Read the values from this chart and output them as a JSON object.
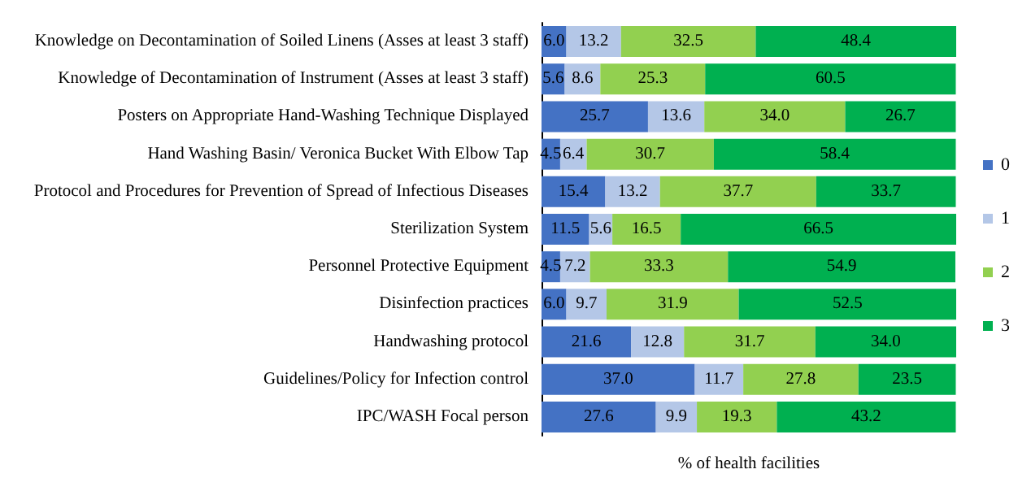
{
  "chart_data": {
    "type": "bar",
    "orientation": "horizontal",
    "stacked": true,
    "xlabel": "% of health facilities",
    "tick_labels": "y",
    "grid": false,
    "legend": "right",
    "categories": [
      "Knowledge on Decontamination of Soiled Linens (Asses at least 3 staff)",
      "Knowledge of Decontamination of Instrument (Asses at least 3 staff)",
      "Posters on Appropriate Hand-Washing Technique Displayed",
      "Hand Washing Basin/ Veronica Bucket With Elbow Tap",
      "Protocol and Procedures for Prevention of Spread of Infectious Diseases",
      "Sterilization System",
      "Personnel Protective Equipment",
      "Disinfection practices",
      "Handwashing protocol",
      "Guidelines/Policy for Infection control",
      "IPC/WASH Focal person"
    ],
    "series": [
      {
        "name": "0",
        "color": "#4472c4",
        "values": [
          6.0,
          5.6,
          25.7,
          4.5,
          15.4,
          11.5,
          4.5,
          6.0,
          21.6,
          37.0,
          27.6
        ],
        "value_labels": [
          "6.0",
          "5.6",
          "25.7",
          "4.5",
          "15.4",
          "11.5",
          "4.5",
          "6.0",
          "21.6",
          "37.0",
          "27.6"
        ]
      },
      {
        "name": "1",
        "color": "#b4c7e7",
        "values": [
          13.2,
          8.6,
          13.6,
          6.4,
          13.2,
          5.6,
          7.2,
          9.7,
          12.8,
          11.7,
          9.9
        ],
        "value_labels": [
          "13.2",
          "8.6",
          "13.6",
          "6.4",
          "13.2",
          "5.6",
          "7.2",
          "9.7",
          "12.8",
          "11.7",
          "9.9"
        ]
      },
      {
        "name": "2",
        "color": "#92d050",
        "values": [
          32.5,
          25.3,
          34.0,
          30.7,
          37.7,
          16.5,
          33.3,
          31.9,
          31.7,
          27.8,
          19.3
        ],
        "value_labels": [
          "32.5",
          "25.3",
          "34.0",
          "30.7",
          "37.7",
          "16.5",
          "33.3",
          "31.9",
          "31.7",
          "27.8",
          "19.3"
        ]
      },
      {
        "name": "3",
        "color": "#00b050",
        "values": [
          48.4,
          60.5,
          26.7,
          58.4,
          33.7,
          66.5,
          54.9,
          52.5,
          34.0,
          23.5,
          43.2
        ],
        "value_labels": [
          "48.4",
          "60.5",
          "26.7",
          "58.4",
          "33.7",
          "66.5",
          "54.9",
          "52.5",
          "34.0",
          "23.5",
          "43.2"
        ]
      }
    ]
  }
}
